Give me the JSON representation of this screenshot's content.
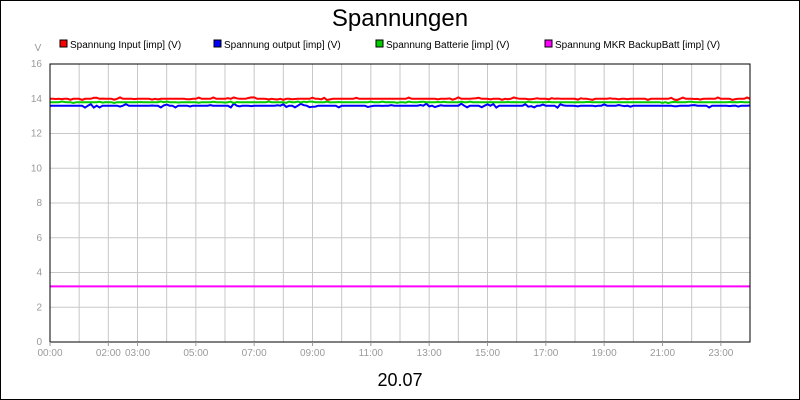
{
  "chart_data": {
    "type": "line",
    "title": "Spannungen",
    "ylabel": "V",
    "xlabel": "20.07",
    "ylim": [
      0,
      16
    ],
    "yticks": [
      "0",
      "2",
      "4",
      "6",
      "8",
      "10",
      "12",
      "14",
      "16"
    ],
    "xlim": [
      0,
      24
    ],
    "xticks": [
      {
        "pos": 0,
        "label": "00:00"
      },
      {
        "pos": 2,
        "label": "02:00"
      },
      {
        "pos": 3,
        "label": "03:00"
      },
      {
        "pos": 5,
        "label": "05:00"
      },
      {
        "pos": 7,
        "label": "07:00"
      },
      {
        "pos": 9,
        "label": "09:00"
      },
      {
        "pos": 11,
        "label": "11:00"
      },
      {
        "pos": 13,
        "label": "13:00"
      },
      {
        "pos": 15,
        "label": "15:00"
      },
      {
        "pos": 17,
        "label": "17:00"
      },
      {
        "pos": 19,
        "label": "19:00"
      },
      {
        "pos": 21,
        "label": "21:00"
      },
      {
        "pos": 23,
        "label": "23:00"
      }
    ],
    "grid": true,
    "legend_position": "top",
    "series": [
      {
        "name": "Spannung Input [imp] (V)",
        "color": "#ff0000",
        "base": 14.0,
        "jitter": 0.08
      },
      {
        "name": "Spannung output [imp] (V)",
        "color": "#0000ff",
        "base": 13.6,
        "jitter": 0.12
      },
      {
        "name": "Spannung Batterie [imp] (V)",
        "color": "#00cc00",
        "base": 13.8,
        "jitter": 0.05
      },
      {
        "name": "Spannung MKR BackupBatt [imp] (V)",
        "color": "#ff00ff",
        "base": 3.2,
        "jitter": 0
      }
    ]
  }
}
